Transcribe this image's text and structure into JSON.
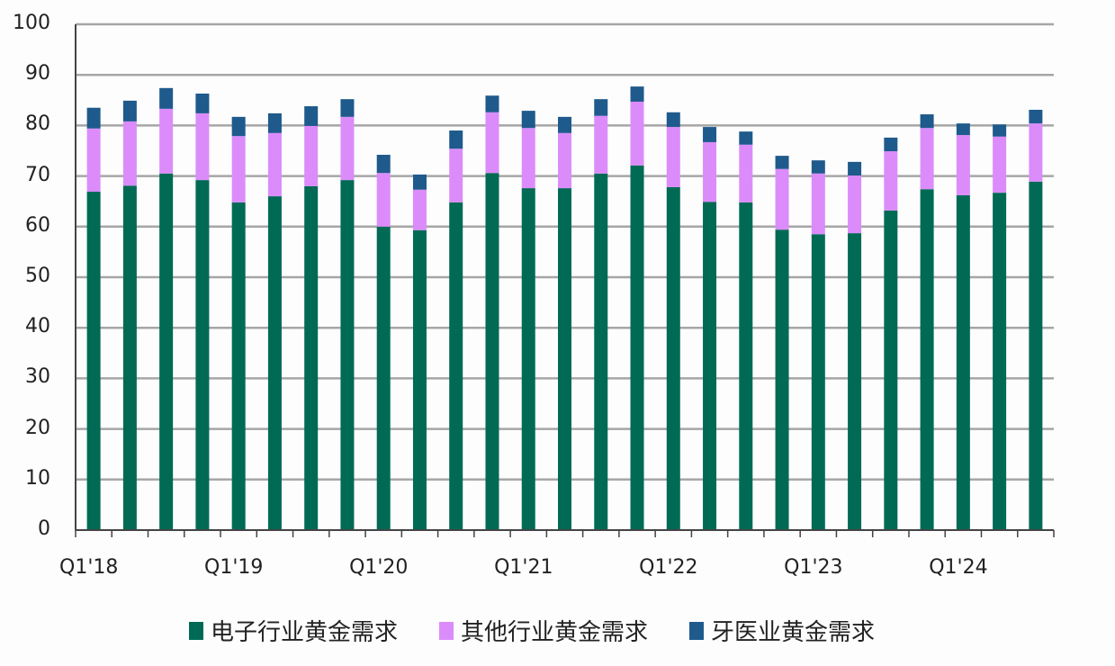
{
  "chart_data": {
    "type": "bar",
    "stacked": true,
    "title": "",
    "xlabel": "",
    "ylabel": "",
    "ylim": [
      0,
      100
    ],
    "yticks": [
      0,
      10,
      20,
      30,
      40,
      50,
      60,
      70,
      80,
      90,
      100
    ],
    "grid": true,
    "legend_position": "bottom",
    "categories": [
      "Q1'18",
      "Q2'18",
      "Q3'18",
      "Q4'18",
      "Q1'19",
      "Q2'19",
      "Q3'19",
      "Q4'19",
      "Q1'20",
      "Q2'20",
      "Q3'20",
      "Q4'20",
      "Q1'21",
      "Q2'21",
      "Q3'21",
      "Q4'21",
      "Q1'22",
      "Q2'22",
      "Q3'22",
      "Q4'22",
      "Q1'23",
      "Q2'23",
      "Q3'23",
      "Q4'23",
      "Q1'24",
      "Q2'24",
      "Q3'24"
    ],
    "xtick_labels": [
      "Q1'18",
      "Q1'19",
      "Q1'20",
      "Q1'21",
      "Q1'22",
      "Q1'23",
      "Q1'24"
    ],
    "series": [
      {
        "name": "电子行业黄金需求",
        "color": "#006a55",
        "values": [
          66.9,
          68.1,
          70.5,
          69.2,
          64.8,
          66.0,
          68.0,
          69.2,
          60.0,
          59.3,
          64.8,
          70.6,
          67.6,
          67.6,
          70.5,
          72.1,
          67.8,
          64.9,
          64.8,
          59.4,
          58.5,
          58.7,
          63.2,
          67.4,
          66.2,
          66.7,
          68.9
        ]
      },
      {
        "name": "其他行业黄金需求",
        "color": "#db8cfa",
        "values": [
          12.5,
          12.7,
          12.8,
          13.2,
          13.1,
          12.5,
          11.9,
          12.5,
          10.6,
          8.0,
          10.6,
          12.0,
          11.9,
          10.9,
          11.4,
          12.6,
          11.9,
          11.8,
          11.4,
          12.0,
          12.0,
          11.4,
          11.7,
          12.1,
          11.9,
          11.1,
          11.5
        ]
      },
      {
        "name": "牙医业黄金需求",
        "color": "#1f5a8c",
        "values": [
          4.1,
          4.1,
          4.1,
          3.9,
          3.8,
          3.9,
          3.9,
          3.5,
          3.6,
          3.0,
          3.6,
          3.3,
          3.4,
          3.2,
          3.3,
          3.0,
          2.9,
          3.0,
          2.6,
          2.6,
          2.6,
          2.7,
          2.7,
          2.7,
          2.3,
          2.4,
          2.7
        ]
      }
    ]
  },
  "legend": {
    "items": [
      {
        "label": "电子行业黄金需求",
        "color": "#006a55"
      },
      {
        "label": "其他行业黄金需求",
        "color": "#db8cfa"
      },
      {
        "label": "牙医业黄金需求",
        "color": "#1f5a8c"
      }
    ]
  }
}
